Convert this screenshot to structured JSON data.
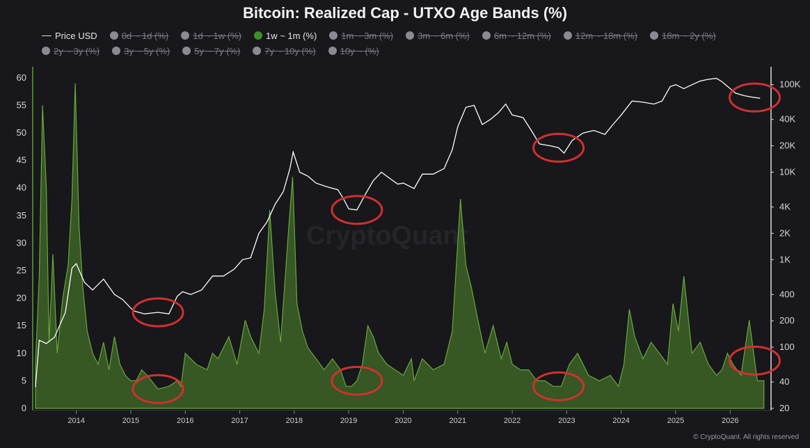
{
  "chart_data": {
    "type": "area",
    "title": "Bitcoin: Realized Cap - UTXO Age Bands (%)",
    "legend_placement": "top",
    "grid": false,
    "x_ticks": [
      "2014",
      "2015",
      "2016",
      "2017",
      "2018",
      "2019",
      "2020",
      "2021",
      "2022",
      "2023",
      "2024",
      "2025",
      "2026"
    ],
    "y_left": {
      "ylim": [
        0,
        62
      ],
      "ticks": [
        "0",
        "5",
        "10",
        "15",
        "20",
        "25",
        "30",
        "35",
        "40",
        "45",
        "50",
        "55",
        "60"
      ]
    },
    "y_right": {
      "scale": "log",
      "ylim": [
        20,
        160000
      ],
      "ticks": [
        "20",
        "40",
        "100",
        "200",
        "400",
        "1K",
        "2K",
        "4K",
        "10K",
        "20K",
        "40K",
        "100K"
      ]
    },
    "legend": [
      {
        "name": "Price USD",
        "active": true,
        "kind": "line"
      },
      {
        "name": "0d ~ 1d (%)",
        "active": false
      },
      {
        "name": "1d ~ 1w (%)",
        "active": false
      },
      {
        "name": "1w ~ 1m (%)",
        "active": true
      },
      {
        "name": "1m ~ 3m (%)",
        "active": false
      },
      {
        "name": "3m ~ 6m (%)",
        "active": false
      },
      {
        "name": "6m ~ 12m (%)",
        "active": false
      },
      {
        "name": "12m ~ 18m (%)",
        "active": false
      },
      {
        "name": "18m ~ 2y (%)",
        "active": false
      },
      {
        "name": "2y ~ 3y (%)",
        "active": false
      },
      {
        "name": "3y ~ 5y (%)",
        "active": false
      },
      {
        "name": "5y ~ 7y (%)",
        "active": false
      },
      {
        "name": "7y ~ 10y (%)",
        "active": false
      },
      {
        "name": "10y ~ (%)",
        "active": false
      }
    ],
    "series": [
      {
        "name": "1w ~ 1m (%)",
        "axis": "left",
        "color": "#4c7f2c",
        "x": [
          2013.25,
          2013.32,
          2013.38,
          2013.45,
          2013.5,
          2013.57,
          2013.65,
          2013.75,
          2013.85,
          2013.92,
          2013.98,
          2014.05,
          2014.12,
          2014.2,
          2014.3,
          2014.4,
          2014.5,
          2014.6,
          2014.7,
          2014.8,
          2014.9,
          2015.0,
          2015.1,
          2015.2,
          2015.3,
          2015.5,
          2015.7,
          2015.85,
          2015.92,
          2016.0,
          2016.2,
          2016.4,
          2016.5,
          2016.6,
          2016.8,
          2016.95,
          2017.1,
          2017.2,
          2017.35,
          2017.45,
          2017.55,
          2017.65,
          2017.75,
          2017.9,
          2017.97,
          2018.05,
          2018.15,
          2018.25,
          2018.4,
          2018.55,
          2018.7,
          2018.85,
          2018.95,
          2019.05,
          2019.15,
          2019.25,
          2019.35,
          2019.45,
          2019.55,
          2019.7,
          2019.85,
          2020.0,
          2020.15,
          2020.2,
          2020.35,
          2020.55,
          2020.75,
          2020.9,
          2021.0,
          2021.05,
          2021.15,
          2021.25,
          2021.35,
          2021.5,
          2021.65,
          2021.8,
          2021.9,
          2022.0,
          2022.15,
          2022.3,
          2022.45,
          2022.6,
          2022.75,
          2022.9,
          2023.05,
          2023.2,
          2023.4,
          2023.6,
          2023.8,
          2023.95,
          2024.05,
          2024.15,
          2024.25,
          2024.4,
          2024.55,
          2024.7,
          2024.85,
          2024.95,
          2025.05,
          2025.15,
          2025.3,
          2025.45,
          2025.6,
          2025.75,
          2025.85,
          2025.95,
          2026.05,
          2026.2,
          2026.35,
          2026.5,
          2026.62
        ],
        "values": [
          8,
          24,
          55,
          40,
          12,
          28,
          10,
          20,
          26,
          38,
          59,
          33,
          22,
          14,
          10,
          8,
          12,
          7,
          13,
          8,
          6,
          5,
          5,
          7,
          6,
          3.5,
          4,
          5,
          4,
          10,
          8,
          7,
          10,
          9,
          13,
          8,
          16,
          13,
          10,
          18,
          36,
          21,
          12,
          33,
          42,
          19,
          14,
          11,
          9,
          7,
          9,
          7,
          4,
          4,
          5,
          8,
          15,
          13,
          10,
          8,
          7,
          6,
          9,
          5,
          9,
          7,
          8,
          14,
          30,
          38,
          26,
          22,
          17,
          10,
          15,
          9,
          12,
          8,
          7,
          7,
          5,
          5,
          4,
          4,
          8,
          10,
          6,
          5,
          6,
          4,
          8,
          18,
          13,
          9,
          12,
          10,
          8,
          19,
          14,
          24,
          10,
          12,
          8,
          6,
          7,
          10,
          8,
          6,
          16,
          5,
          5
        ]
      },
      {
        "name": "Price USD",
        "axis": "right",
        "color": "#ffffff",
        "x": [
          2013.25,
          2013.32,
          2013.45,
          2013.6,
          2013.8,
          2013.92,
          2014.0,
          2014.15,
          2014.3,
          2014.5,
          2014.7,
          2014.85,
          2015.05,
          2015.25,
          2015.5,
          2015.7,
          2015.85,
          2015.95,
          2016.1,
          2016.3,
          2016.5,
          2016.7,
          2016.9,
          2017.05,
          2017.2,
          2017.35,
          2017.5,
          2017.65,
          2017.8,
          2017.92,
          2017.98,
          2018.1,
          2018.25,
          2018.4,
          2018.6,
          2018.8,
          2018.9,
          2019.0,
          2019.15,
          2019.3,
          2019.45,
          2019.6,
          2019.75,
          2019.9,
          2020.0,
          2020.2,
          2020.35,
          2020.55,
          2020.75,
          2020.9,
          2021.0,
          2021.15,
          2021.3,
          2021.45,
          2021.6,
          2021.75,
          2021.88,
          2022.0,
          2022.2,
          2022.35,
          2022.5,
          2022.7,
          2022.85,
          2022.95,
          2023.1,
          2023.3,
          2023.5,
          2023.7,
          2023.85,
          2024.0,
          2024.2,
          2024.4,
          2024.6,
          2024.75,
          2024.9,
          2025.0,
          2025.15,
          2025.3,
          2025.45,
          2025.6,
          2025.75,
          2025.85,
          2026.0,
          2026.1,
          2026.25,
          2026.4,
          2026.55
        ],
        "values": [
          35,
          120,
          110,
          130,
          250,
          800,
          900,
          550,
          450,
          600,
          400,
          350,
          260,
          240,
          250,
          240,
          380,
          430,
          400,
          450,
          650,
          650,
          780,
          1000,
          1050,
          2000,
          2700,
          4300,
          6000,
          11000,
          17000,
          10000,
          9000,
          7500,
          6800,
          6300,
          5000,
          3800,
          3700,
          5500,
          8000,
          10000,
          8500,
          7300,
          7500,
          6500,
          9500,
          9500,
          11000,
          18000,
          33000,
          55000,
          58000,
          35000,
          40000,
          48000,
          60000,
          45000,
          42000,
          30000,
          21000,
          20000,
          19000,
          16500,
          23000,
          28000,
          30000,
          27000,
          35000,
          45000,
          65000,
          63000,
          60000,
          65000,
          95000,
          100000,
          90000,
          100000,
          110000,
          115000,
          118000,
          108000,
          90000,
          80000,
          75000,
          72000,
          70000
        ]
      }
    ],
    "annotations": [
      {
        "shape": "ellipse",
        "color": "#d0312d",
        "series": "Price USD",
        "x": 2015.5
      },
      {
        "shape": "ellipse",
        "color": "#d0312d",
        "series": "Price USD",
        "x": 2019.15
      },
      {
        "shape": "ellipse",
        "color": "#d0312d",
        "series": "Price USD",
        "x": 2022.85
      },
      {
        "shape": "ellipse",
        "color": "#d0312d",
        "series": "Price USD",
        "x": 2026.45
      },
      {
        "shape": "ellipse",
        "color": "#d0312d",
        "series": "1w ~ 1m (%)",
        "x": 2015.5
      },
      {
        "shape": "ellipse",
        "color": "#d0312d",
        "series": "1w ~ 1m (%)",
        "x": 2019.15
      },
      {
        "shape": "ellipse",
        "color": "#d0312d",
        "series": "1w ~ 1m (%)",
        "x": 2022.85
      },
      {
        "shape": "ellipse",
        "color": "#d0312d",
        "series": "1w ~ 1m (%)",
        "x": 2026.45
      }
    ]
  },
  "colors": {
    "active_legend": "#3f8f2a",
    "inactive_legend": "#8a8a92",
    "area": "#4c7f2c",
    "price_line": "#ffffff",
    "annotation": "#d0312d"
  },
  "watermark": "CryptoQuant",
  "copyright": "© CryptoQuant. All rights reserved"
}
